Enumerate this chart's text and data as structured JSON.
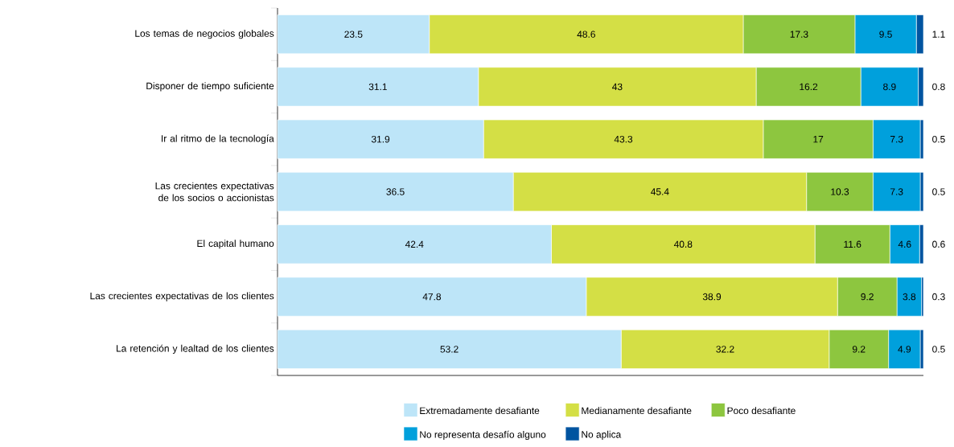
{
  "chart_data": {
    "type": "bar",
    "orientation": "horizontal",
    "stacked": true,
    "data_labels": true,
    "legend": "bottom",
    "tick_labels": "y",
    "xlim": [
      0,
      100
    ],
    "categories": [
      "Los temas de negocios globales",
      "Disponer de tiempo suficiente",
      "Ir al ritmo de la tecnología",
      "Las crecientes expectativas de los socios o accionistas",
      "El capital humano",
      "Las crecientes expectativas de los clientes",
      "La retención y lealtad de los clientes"
    ],
    "series": [
      {
        "name": "Extremadamente desafiante",
        "color": "#bde5f8",
        "values": [
          23.5,
          31.1,
          31.9,
          36.5,
          42.4,
          47.8,
          53.2
        ]
      },
      {
        "name": "Medianamente desafiante",
        "color": "#d4df45",
        "values": [
          48.6,
          43,
          43.3,
          45.4,
          40.8,
          38.9,
          32.2
        ]
      },
      {
        "name": "Poco desafiante",
        "color": "#8dc63f",
        "values": [
          17.3,
          16.2,
          17,
          10.3,
          11.6,
          9.2,
          9.2
        ]
      },
      {
        "name": "No representa desafío alguno",
        "color": "#00a0dc",
        "values": [
          9.5,
          8.9,
          7.3,
          7.3,
          4.6,
          3.8,
          4.9
        ]
      },
      {
        "name": "No aplica",
        "color": "#0054a0",
        "values": [
          1.1,
          0.8,
          0.5,
          0.5,
          0.6,
          0.3,
          0.5
        ]
      }
    ]
  }
}
